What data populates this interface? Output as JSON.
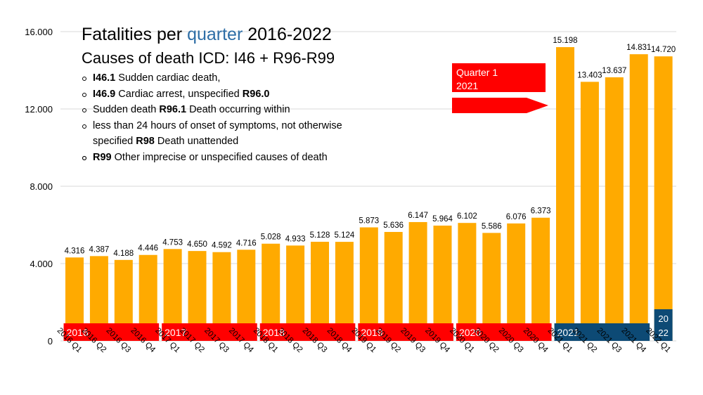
{
  "title": {
    "prefix": "Fatalities per ",
    "highlight": "quarter",
    "suffix": " 2016-2022"
  },
  "subtitle": "Causes of death ICD: I46 + R96-R99",
  "notes": [
    {
      "code": "I46.1",
      "text": " Sudden cardiac death,"
    },
    {
      "code": "I46.9",
      "text": " Cardiac arrest, unspecified ",
      "code2": "R96.0"
    },
    {
      "text": "Sudden death ",
      "code": "R96.1",
      "text2": " Death occurring within"
    },
    {
      "text": "less than 24 hours of onset of symptoms, not otherwise specified ",
      "code": "R98",
      "text2": " Death unattended"
    },
    {
      "text": ""
    },
    {
      "code": "R99",
      "text": " Other imprecise or unspecified causes of death"
    }
  ],
  "callout": {
    "line1": "Quarter 1",
    "line2": "2021"
  },
  "colors": {
    "bar": "#ffaa00",
    "year_band": "#ff0000",
    "year_band_2021": "#0d4a75",
    "grid": "#d9d9d9",
    "callout": "#ff0000",
    "title_highlight": "#2e6ea6"
  },
  "chart_data": {
    "type": "bar",
    "categories": [
      "2016 Q1",
      "2016 Q2",
      "2016 Q3",
      "2016 Q4",
      "2017 Q1",
      "2017 Q2",
      "2017 Q3",
      "2017 Q4",
      "2018 Q1",
      "2018 Q2",
      "2018 Q3",
      "2018 Q4",
      "2019 Q1",
      "2019 Q2",
      "2019 Q3",
      "2019 Q4",
      "2020 Q1",
      "2020 Q2",
      "2020 Q3",
      "2020 Q4",
      "2021 Q1",
      "2021 Q2",
      "2021 Q3",
      "2021 Q4",
      "2022 Q1"
    ],
    "values": [
      4316,
      4387,
      4188,
      4446,
      4753,
      4650,
      4592,
      4716,
      5028,
      4933,
      5128,
      5124,
      5873,
      5636,
      6147,
      5964,
      6102,
      5586,
      6076,
      6373,
      15198,
      13403,
      13637,
      14831,
      14720
    ],
    "value_labels": [
      "4.316",
      "4.387",
      "4.188",
      "4.446",
      "4.753",
      "4.650",
      "4.592",
      "4.716",
      "5.028",
      "4.933",
      "5.128",
      "5.124",
      "5.873",
      "5.636",
      "6.147",
      "5.964",
      "6.102",
      "5.586",
      "6.076",
      "6.373",
      "15.198",
      "13.403",
      "13.637",
      "14.831",
      "14.720"
    ],
    "ylim": [
      0,
      16000
    ],
    "yticks": [
      0,
      4000,
      8000,
      12000,
      16000
    ],
    "ytick_labels": [
      "0",
      "4.000",
      "8.000",
      "12.000",
      "16.000"
    ],
    "grid": true,
    "year_bands": [
      {
        "label": "2016",
        "start": 0,
        "end": 3,
        "color": "#ff0000"
      },
      {
        "label": "2017",
        "start": 4,
        "end": 7,
        "color": "#ff0000"
      },
      {
        "label": "2018",
        "start": 8,
        "end": 11,
        "color": "#ff0000"
      },
      {
        "label": "2019",
        "start": 12,
        "end": 15,
        "color": "#ff0000"
      },
      {
        "label": "2020",
        "start": 16,
        "end": 19,
        "color": "#ff0000"
      },
      {
        "label": "2021",
        "start": 20,
        "end": 23,
        "color": "#0d4a75"
      },
      {
        "label": "20 22",
        "start": 24,
        "end": 24,
        "color": "#0d4a75"
      }
    ]
  }
}
